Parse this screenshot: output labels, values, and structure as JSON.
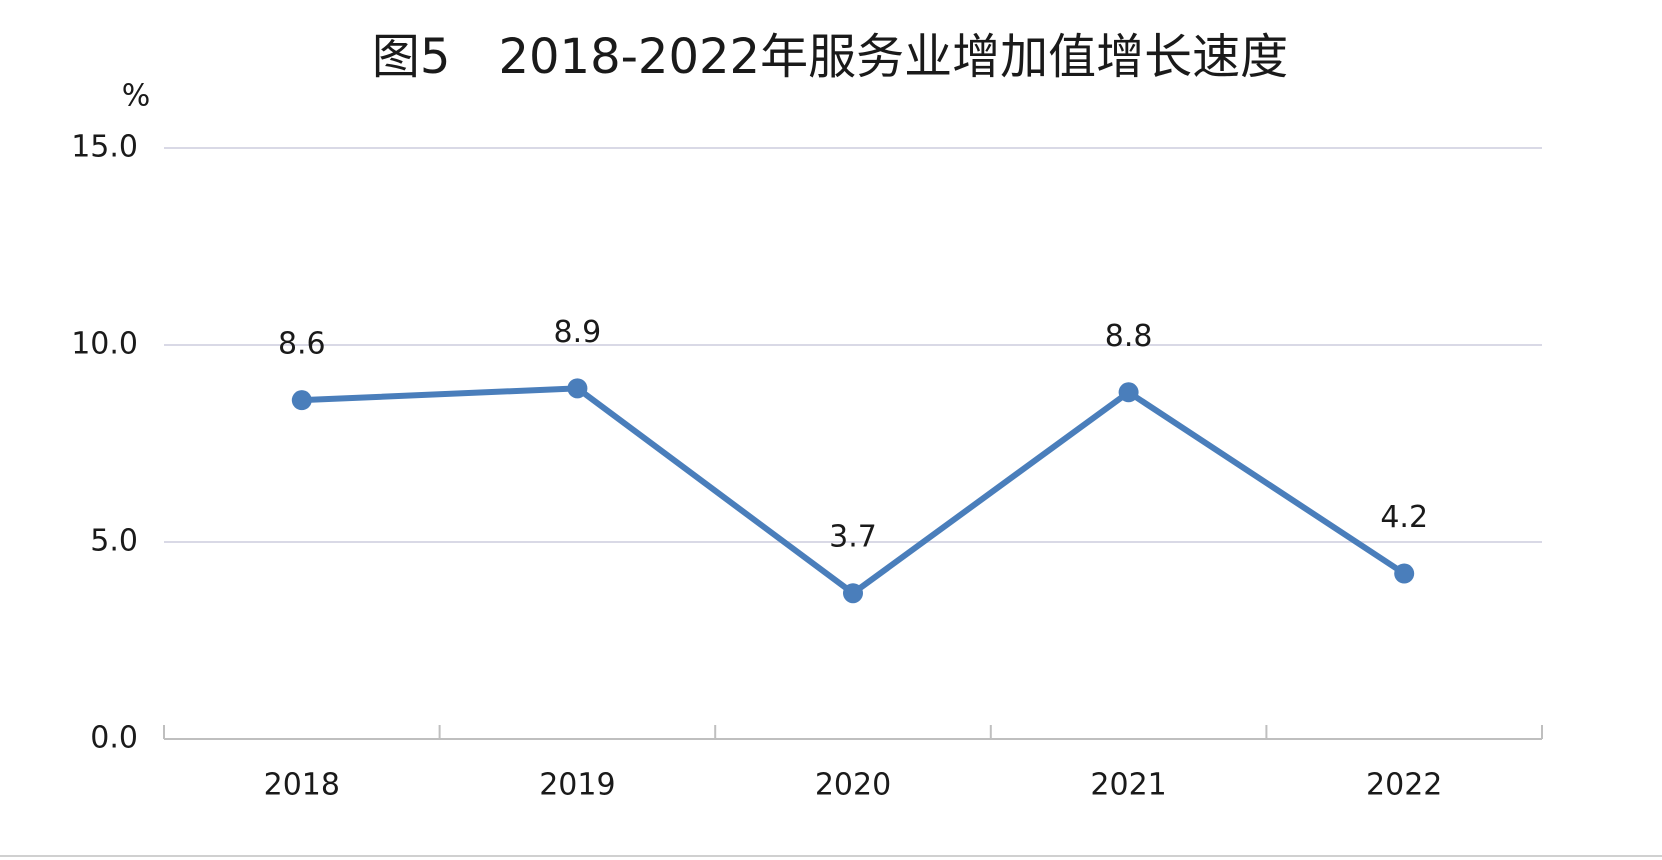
{
  "chart_data": {
    "type": "line",
    "title": "图5　2018-2022年服务业增加值增长速度",
    "y_unit": "%",
    "categories": [
      "2018",
      "2019",
      "2020",
      "2021",
      "2022"
    ],
    "series": [
      {
        "name": "服务业增加值增长速度",
        "color": "#4a7ebb",
        "values": [
          8.6,
          8.9,
          3.7,
          8.8,
          4.2
        ]
      }
    ],
    "ylim": [
      0,
      15
    ],
    "yticks": [
      {
        "value": 0,
        "label": "0.0"
      },
      {
        "value": 5,
        "label": "5.0"
      },
      {
        "value": 10,
        "label": "10.0"
      },
      {
        "value": 15,
        "label": "15.0"
      }
    ],
    "grid": true
  }
}
